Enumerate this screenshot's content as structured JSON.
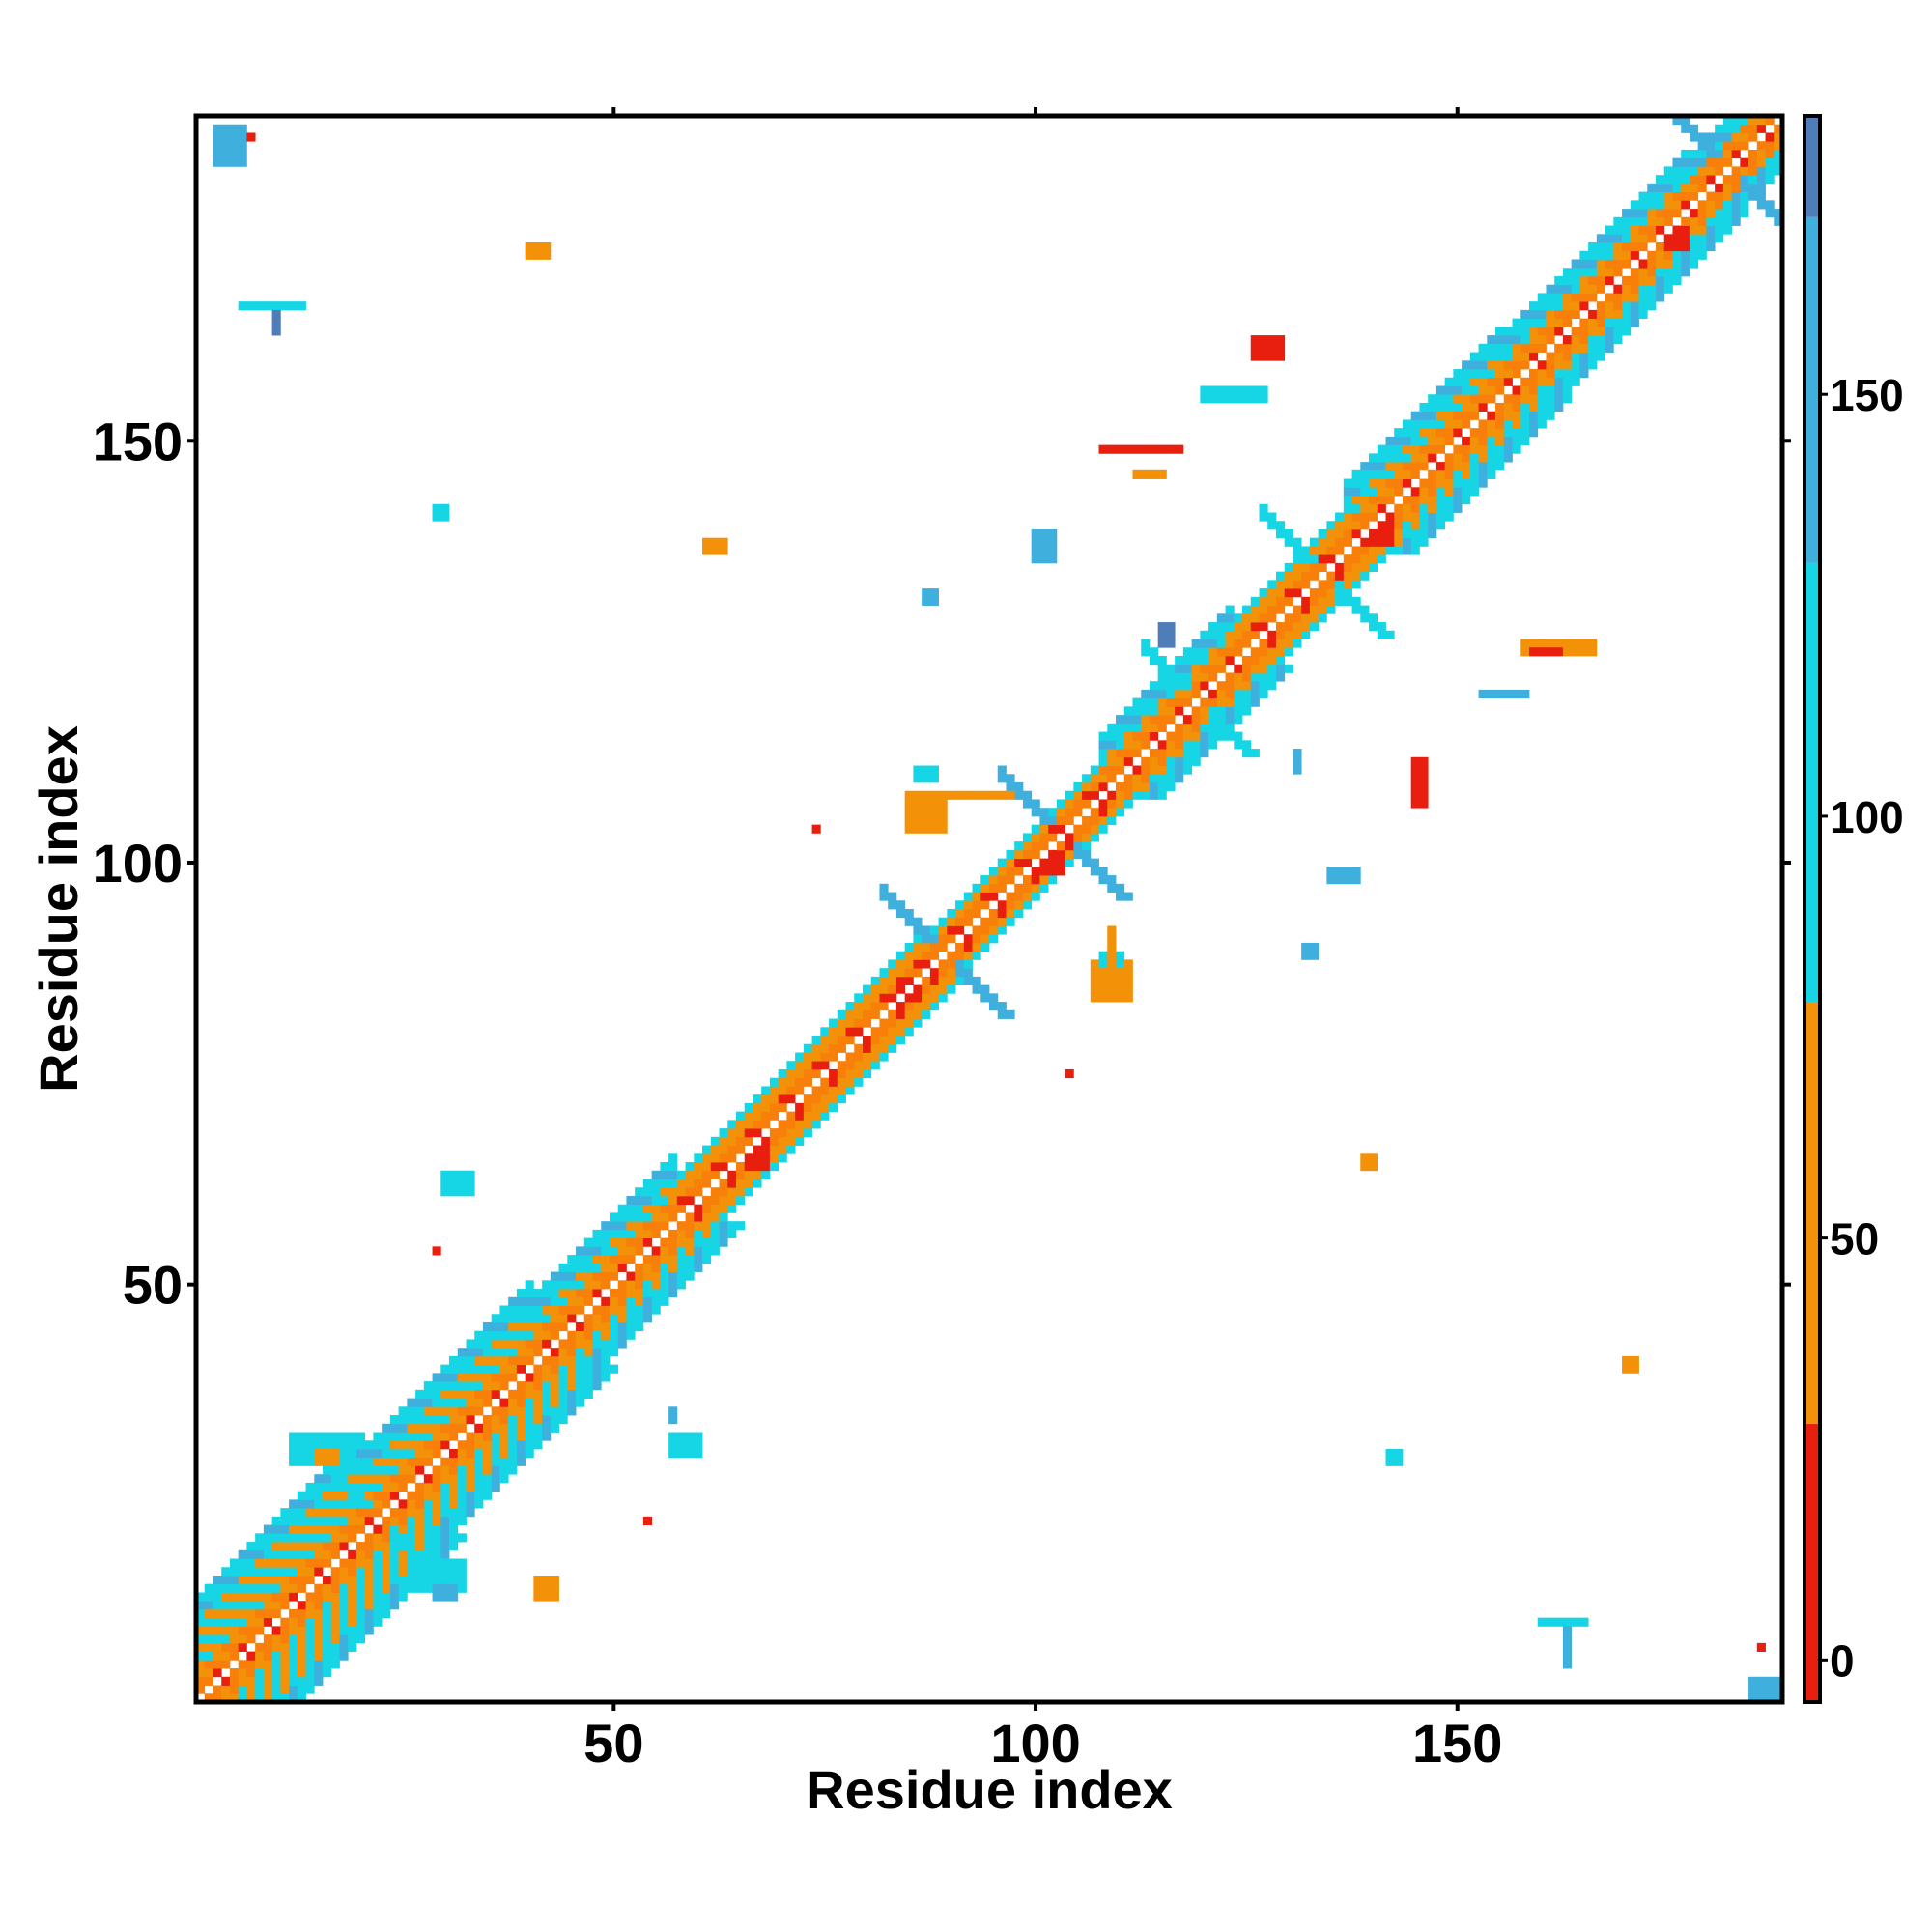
{
  "chart_data": {
    "type": "heatmap",
    "title": "",
    "xlabel": "Residue index",
    "ylabel": "Residue index",
    "n_residues": 188,
    "xlim": [
      1,
      188
    ],
    "ylim": [
      1,
      188
    ],
    "xticks": [
      50,
      100,
      150
    ],
    "yticks": [
      50,
      100,
      150
    ],
    "colorbar": {
      "ticks": [
        0,
        50,
        100,
        150
      ],
      "range": [
        -5,
        183
      ],
      "bands": [
        {
          "from": -5,
          "to": 28,
          "color": "#E81E0E"
        },
        {
          "from": 28,
          "to": 78,
          "color": "#F39208"
        },
        {
          "from": 78,
          "to": 130,
          "color": "#16D6E6"
        },
        {
          "from": 130,
          "to": 171,
          "color": "#3FB0DD"
        },
        {
          "from": 171,
          "to": 183,
          "color": "#4F7DBA"
        }
      ],
      "top_color": "#FFFFFF"
    },
    "palette": {
      "near": "#E81E0E",
      "mid": "#F39208",
      "orange": "#F77F0A",
      "cyan": "#16D6E6",
      "sky": "#3FB0DD",
      "blue": "#4F7DBA"
    },
    "diagonal_segments": [
      {
        "from": 1,
        "to": 20,
        "width": 12,
        "style": "mixed"
      },
      {
        "from": 20,
        "to": 40,
        "width": 10,
        "style": "mixed"
      },
      {
        "from": 40,
        "to": 57,
        "width": 8,
        "style": "mixed"
      },
      {
        "from": 57,
        "to": 87,
        "width": 5,
        "style": "orange"
      },
      {
        "from": 87,
        "to": 98,
        "width": 4,
        "style": "orange"
      },
      {
        "from": 98,
        "to": 108,
        "width": 4,
        "style": "orange"
      },
      {
        "from": 108,
        "to": 123,
        "width": 7,
        "style": "mixed"
      },
      {
        "from": 123,
        "to": 137,
        "width": 5,
        "style": "orange"
      },
      {
        "from": 137,
        "to": 155,
        "width": 8,
        "style": "mixed"
      },
      {
        "from": 155,
        "to": 177,
        "width": 7,
        "style": "mixed"
      },
      {
        "from": 177,
        "to": 188,
        "width": 6,
        "style": "mixed"
      }
    ],
    "crosses": [
      {
        "x": 22,
        "y": 22,
        "len": 6,
        "color": "#16D6E6"
      },
      {
        "x": 89,
        "y": 89,
        "len": 7,
        "color": "#3FB0DD"
      },
      {
        "x": 103,
        "y": 103,
        "len": 7,
        "color": "#3FB0DD"
      },
      {
        "x": 119,
        "y": 119,
        "len": 6,
        "color": "#16D6E6"
      },
      {
        "x": 134,
        "y": 134,
        "len": 7,
        "color": "#16D6E6"
      },
      {
        "x": 182,
        "y": 182,
        "len": 8,
        "color": "#3FB0DD"
      }
    ],
    "patches": [
      {
        "x": 3,
        "y": 187,
        "w": 4,
        "h": 5,
        "color": "#3FB0DD"
      },
      {
        "x": 7,
        "y": 186,
        "w": 1,
        "h": 1,
        "color": "#E81E0E"
      },
      {
        "x": 185,
        "y": 3,
        "w": 5,
        "h": 4,
        "color": "#3FB0DD"
      },
      {
        "x": 186,
        "y": 7,
        "w": 1,
        "h": 1,
        "color": "#E81E0E"
      },
      {
        "x": 40,
        "y": 173,
        "w": 3,
        "h": 2,
        "color": "#F39208"
      },
      {
        "x": 6,
        "y": 166,
        "w": 8,
        "h": 1,
        "color": "#16D6E6"
      },
      {
        "x": 10,
        "y": 165,
        "w": 1,
        "h": 3,
        "color": "#4F7DBA"
      },
      {
        "x": 29,
        "y": 142,
        "w": 2,
        "h": 2,
        "color": "#16D6E6"
      },
      {
        "x": 61,
        "y": 138,
        "w": 3,
        "h": 2,
        "color": "#F39208"
      },
      {
        "x": 87,
        "y": 132,
        "w": 2,
        "h": 2,
        "color": "#3FB0DD"
      },
      {
        "x": 100,
        "y": 139,
        "w": 3,
        "h": 4,
        "color": "#3FB0DD"
      },
      {
        "x": 108,
        "y": 149,
        "w": 10,
        "h": 1,
        "color": "#E81E0E"
      },
      {
        "x": 112,
        "y": 146,
        "w": 4,
        "h": 1,
        "color": "#F39208"
      },
      {
        "x": 126,
        "y": 162,
        "w": 4,
        "h": 3,
        "color": "#E81E0E"
      },
      {
        "x": 120,
        "y": 156,
        "w": 8,
        "h": 2,
        "color": "#16D6E6"
      },
      {
        "x": 115,
        "y": 128,
        "w": 2,
        "h": 3,
        "color": "#4F7DBA"
      },
      {
        "x": 158,
        "y": 126,
        "w": 9,
        "h": 2,
        "color": "#F39208"
      },
      {
        "x": 159,
        "y": 125,
        "w": 4,
        "h": 1,
        "color": "#E81E0E"
      },
      {
        "x": 153,
        "y": 120,
        "w": 6,
        "h": 1,
        "color": "#3FB0DD"
      },
      {
        "x": 145,
        "y": 112,
        "w": 2,
        "h": 6,
        "color": "#E81E0E"
      },
      {
        "x": 85,
        "y": 108,
        "w": 5,
        "h": 5,
        "color": "#F39208"
      },
      {
        "x": 86,
        "y": 111,
        "w": 3,
        "h": 2,
        "color": "#16D6E6"
      },
      {
        "x": 90,
        "y": 108,
        "w": 8,
        "h": 1,
        "color": "#F39208"
      },
      {
        "x": 107,
        "y": 88,
        "w": 5,
        "h": 5,
        "color": "#F39208"
      },
      {
        "x": 108,
        "y": 89,
        "w": 3,
        "h": 2,
        "color": "#16D6E6"
      },
      {
        "x": 109,
        "y": 92,
        "w": 1,
        "h": 8,
        "color": "#F39208"
      },
      {
        "x": 74,
        "y": 104,
        "w": 1,
        "h": 1,
        "color": "#E81E0E"
      },
      {
        "x": 104,
        "y": 75,
        "w": 1,
        "h": 1,
        "color": "#E81E0E"
      },
      {
        "x": 135,
        "y": 99,
        "w": 4,
        "h": 2,
        "color": "#3FB0DD"
      },
      {
        "x": 132,
        "y": 90,
        "w": 2,
        "h": 2,
        "color": "#3FB0DD"
      },
      {
        "x": 131,
        "y": 113,
        "w": 1,
        "h": 3,
        "color": "#3FB0DD"
      },
      {
        "x": 139,
        "y": 65,
        "w": 2,
        "h": 2,
        "color": "#F39208"
      },
      {
        "x": 170,
        "y": 41,
        "w": 2,
        "h": 2,
        "color": "#F39208"
      },
      {
        "x": 142,
        "y": 30,
        "w": 2,
        "h": 2,
        "color": "#16D6E6"
      },
      {
        "x": 163,
        "y": 10,
        "w": 1,
        "h": 6,
        "color": "#3FB0DD"
      },
      {
        "x": 160,
        "y": 10,
        "w": 6,
        "h": 1,
        "color": "#16D6E6"
      },
      {
        "x": 30,
        "y": 63,
        "w": 4,
        "h": 3,
        "color": "#16D6E6"
      },
      {
        "x": 29,
        "y": 54,
        "w": 1,
        "h": 1,
        "color": "#E81E0E"
      },
      {
        "x": 12,
        "y": 32,
        "w": 8,
        "h": 4,
        "color": "#16D6E6"
      },
      {
        "x": 15,
        "y": 30,
        "w": 3,
        "h": 2,
        "color": "#F39208"
      },
      {
        "x": 27,
        "y": 17,
        "w": 6,
        "h": 4,
        "color": "#16D6E6"
      },
      {
        "x": 29,
        "y": 14,
        "w": 3,
        "h": 2,
        "color": "#3FB0DD"
      },
      {
        "x": 57,
        "y": 32,
        "w": 4,
        "h": 3,
        "color": "#16D6E6"
      },
      {
        "x": 57,
        "y": 35,
        "w": 1,
        "h": 2,
        "color": "#3FB0DD"
      },
      {
        "x": 41,
        "y": 15,
        "w": 3,
        "h": 3,
        "color": "#F39208"
      },
      {
        "x": 54,
        "y": 22,
        "w": 1,
        "h": 1,
        "color": "#E81E0E"
      },
      {
        "x": 66,
        "y": 66,
        "w": 3,
        "h": 3,
        "color": "#E81E0E"
      },
      {
        "x": 84,
        "y": 86,
        "w": 3,
        "h": 3,
        "color": "#E81E0E"
      },
      {
        "x": 101,
        "y": 101,
        "w": 3,
        "h": 3,
        "color": "#E81E0E"
      },
      {
        "x": 140,
        "y": 140,
        "w": 3,
        "h": 3,
        "color": "#E81E0E"
      },
      {
        "x": 175,
        "y": 175,
        "w": 3,
        "h": 3,
        "color": "#E81E0E"
      }
    ]
  }
}
